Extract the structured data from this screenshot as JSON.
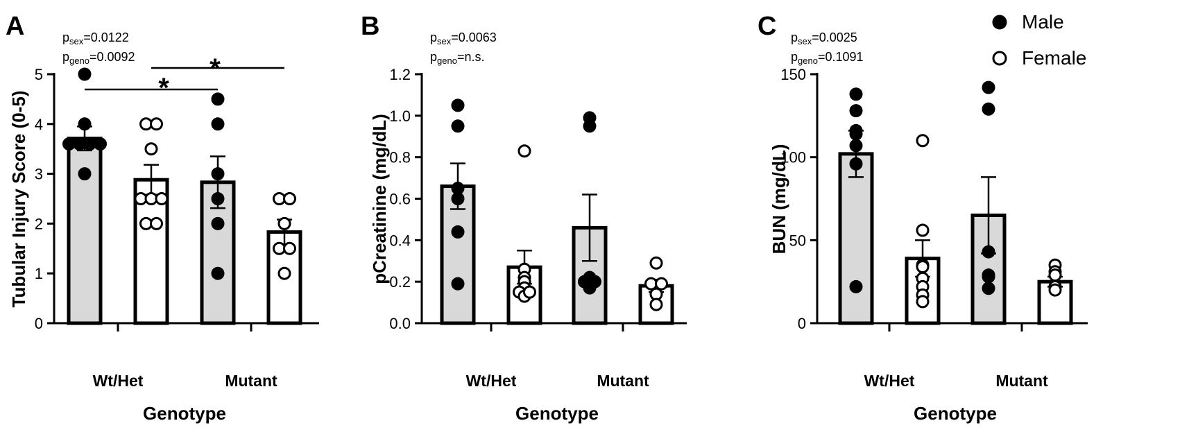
{
  "legend": {
    "position": "top-right",
    "items": [
      {
        "label": "Male",
        "fill": "#000000"
      },
      {
        "label": "Female",
        "fill": "#ffffff"
      }
    ]
  },
  "chart_data": [
    {
      "type": "bar",
      "panel": "A",
      "xlabel": "Genotype",
      "ylabel": "Tubular Injury Score (0-5)",
      "categories": [
        "Wt/Het",
        "Mutant"
      ],
      "ylim": [
        0,
        5
      ],
      "yticks": [
        "0",
        "1",
        "2",
        "3",
        "4",
        "5"
      ],
      "annotation": {
        "line1": {
          "p": "p",
          "sub": "sex",
          "val": "=0.0122"
        },
        "line2": {
          "p": "p",
          "sub": "geno",
          "val": "=0.0092"
        }
      },
      "series": [
        {
          "name": "Male",
          "color": "#d9d9d9",
          "marker_fill": "#000000",
          "means": [
            3.71,
            2.83
          ],
          "sem": [
            0.24,
            0.52
          ],
          "points": [
            [
              5,
              4,
              3.6,
              3.6,
              3.6,
              3.6,
              3
            ],
            [
              4.5,
              4,
              3,
              2.5,
              2,
              1
            ]
          ]
        },
        {
          "name": "Female",
          "color": "#ffffff",
          "marker_fill": "#ffffff",
          "means": [
            2.88,
            1.83
          ],
          "sem": [
            0.3,
            0.25
          ],
          "points": [
            [
              4,
              4,
              3.5,
              2.5,
              2.5,
              2.5,
              2,
              2
            ],
            [
              2.5,
              2.5,
              2,
              1.5,
              1.5,
              1
            ]
          ]
        }
      ],
      "significance": [
        {
          "label": "*",
          "from": "Wt/Het Male",
          "to": "Mutant Male"
        },
        {
          "label": "*",
          "from": "Wt/Het Female",
          "to": "Mutant Female"
        }
      ]
    },
    {
      "type": "bar",
      "panel": "B",
      "xlabel": "Genotype",
      "ylabel": "pCreatinine (mg/dL)",
      "categories": [
        "Wt/Het",
        "Mutant"
      ],
      "ylim": [
        0,
        1.2
      ],
      "yticks": [
        "0.0",
        "0.2",
        "0.4",
        "0.6",
        "0.8",
        "1.0",
        "1.2"
      ],
      "annotation": {
        "line1": {
          "p": "p",
          "sub": "sex",
          "val": "=0.0063"
        },
        "line2": {
          "p": "p",
          "sub": "geno",
          "val": "=n.s."
        }
      },
      "series": [
        {
          "name": "Male",
          "color": "#d9d9d9",
          "marker_fill": "#000000",
          "means": [
            0.66,
            0.46
          ],
          "sem": [
            0.11,
            0.16
          ],
          "points": [
            [
              1.05,
              0.95,
              0.65,
              0.6,
              0.44,
              0.19
            ],
            [
              0.99,
              0.95,
              0.22,
              0.2,
              0.2,
              0.17
            ]
          ]
        },
        {
          "name": "Female",
          "color": "#ffffff",
          "marker_fill": "#ffffff",
          "means": [
            0.27,
            0.18
          ],
          "sem": [
            0.08,
            0.03
          ],
          "points": [
            [
              0.83,
              0.26,
              0.22,
              0.2,
              0.17,
              0.15,
              0.13,
              0.15
            ],
            [
              0.29,
              0.19,
              0.19,
              0.14,
              0.09
            ]
          ]
        }
      ]
    },
    {
      "type": "bar",
      "panel": "C",
      "xlabel": "Genotype",
      "ylabel": "BUN (mg/dL)",
      "categories": [
        "Wt/Het",
        "Mutant"
      ],
      "ylim": [
        0,
        150
      ],
      "yticks": [
        "0",
        "50",
        "100",
        "150"
      ],
      "annotation": {
        "line1": {
          "p": "p",
          "sub": "sex",
          "val": "=0.0025"
        },
        "line2": {
          "p": "p",
          "sub": "geno",
          "val": "=0.1091"
        }
      },
      "series": [
        {
          "name": "Male",
          "color": "#d9d9d9",
          "marker_fill": "#000000",
          "means": [
            102,
            65
          ],
          "sem": [
            14,
            23
          ],
          "points": [
            [
              138,
              128,
              116,
              114,
              107,
              96,
              22
            ],
            [
              142,
              129,
              43,
              29,
              28,
              21
            ]
          ]
        },
        {
          "name": "Female",
          "color": "#ffffff",
          "marker_fill": "#ffffff",
          "means": [
            39,
            25
          ],
          "sem": [
            11,
            3
          ],
          "points": [
            [
              110,
              56,
              35,
              34,
              27,
              22,
              17,
              13
            ],
            [
              35,
              31,
              29,
              22,
              20
            ]
          ]
        }
      ]
    }
  ]
}
